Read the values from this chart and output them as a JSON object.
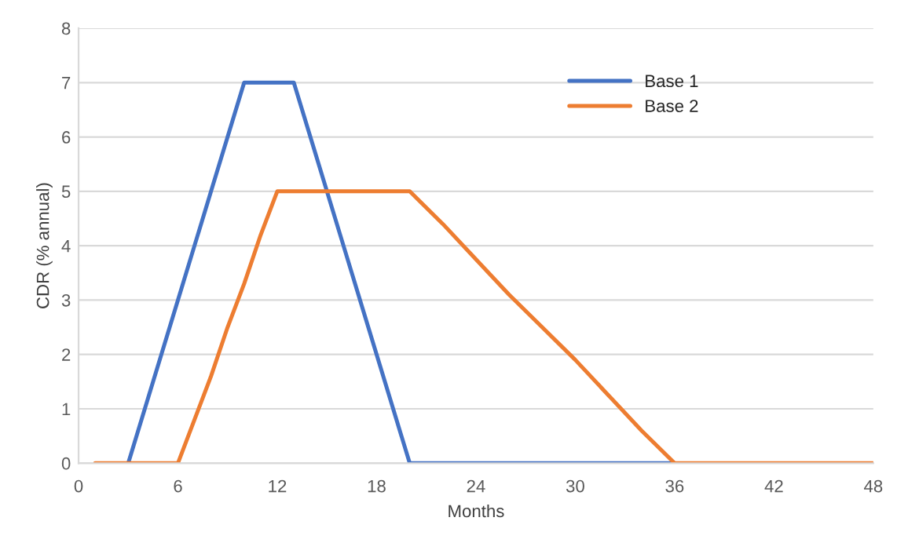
{
  "chart_data": {
    "type": "line",
    "xlabel": "Months",
    "ylabel": "CDR (% annual)",
    "xlim": [
      0,
      48
    ],
    "xticks": [
      0,
      6,
      12,
      18,
      24,
      30,
      36,
      42,
      48
    ],
    "ylim": [
      0,
      8
    ],
    "yticks": [
      0,
      1,
      2,
      3,
      4,
      5,
      6,
      7,
      8
    ],
    "grid": "y",
    "legend": "top right",
    "marker": "none",
    "line_style": "solid",
    "series": [
      {
        "name": "Base 1",
        "color": "#4472c4",
        "x": [
          3,
          4,
          5,
          6,
          7,
          8,
          9,
          10,
          13,
          14,
          15,
          16,
          17,
          18,
          19,
          20,
          36
        ],
        "values": [
          0,
          1,
          2,
          3,
          4,
          5,
          6,
          7,
          7,
          6,
          5,
          4,
          3,
          2,
          1,
          0,
          0
        ]
      },
      {
        "name": "Base 2",
        "color": "#ed7d31",
        "x": [
          1,
          6,
          7,
          8,
          9,
          10,
          11,
          12,
          20,
          22,
          24,
          26,
          28,
          30,
          32,
          34,
          36,
          48
        ],
        "values": [
          0,
          0,
          0.8,
          1.6,
          2.5,
          3.3,
          4.2,
          5,
          5,
          4.4,
          3.75,
          3.1,
          2.5,
          1.9,
          1.25,
          0.6,
          0,
          0
        ]
      }
    ]
  }
}
